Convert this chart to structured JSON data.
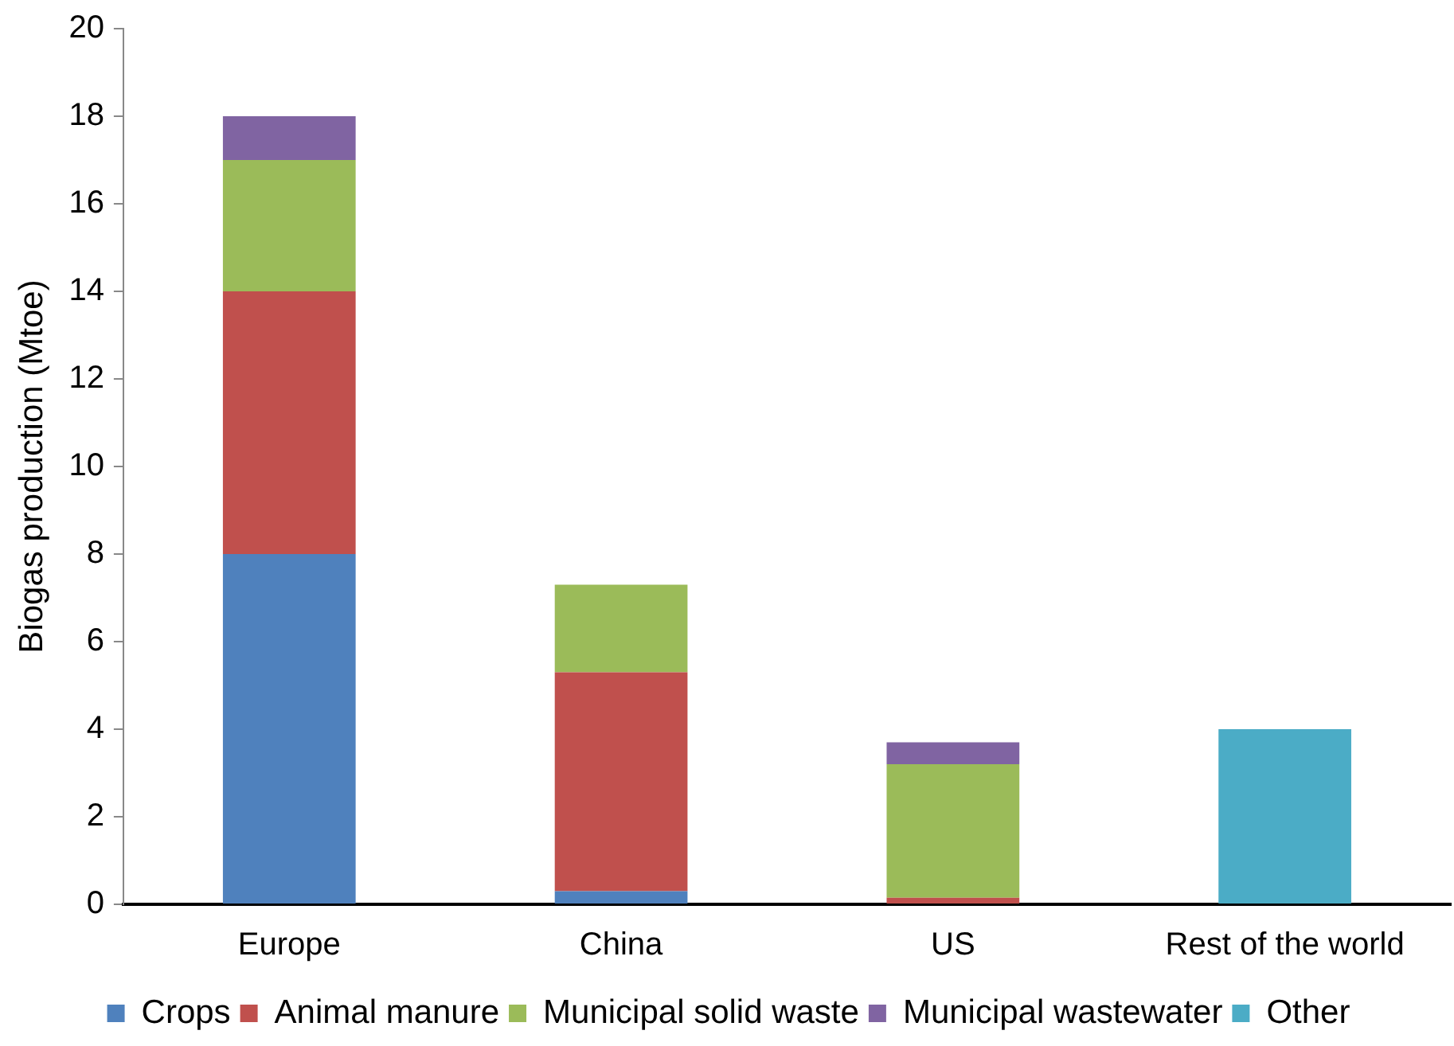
{
  "chart_data": {
    "type": "bar",
    "stacked": true,
    "ylabel": "Biogas production (Mtoe)",
    "categories": [
      "Europe",
      "China",
      "US",
      "Rest of the world"
    ],
    "series": [
      {
        "name": "Crops",
        "color": "#4f81bd",
        "values": [
          8,
          0.3,
          0,
          0
        ]
      },
      {
        "name": "Animal manure",
        "color": "#c0504d",
        "values": [
          6,
          5,
          0.15,
          0
        ]
      },
      {
        "name": "Municipal solid waste",
        "color": "#9bbb59",
        "values": [
          3,
          2,
          3.05,
          0
        ]
      },
      {
        "name": "Municipal wastewater",
        "color": "#8064a2",
        "values": [
          1,
          0,
          0.5,
          0
        ]
      },
      {
        "name": "Other",
        "color": "#4bacc6",
        "values": [
          0,
          0,
          0,
          4
        ]
      }
    ],
    "ylim": [
      0,
      20
    ],
    "yticks": [
      0,
      2,
      4,
      6,
      8,
      10,
      12,
      14,
      16,
      18,
      20
    ],
    "grid": false,
    "legend": "bottom"
  }
}
